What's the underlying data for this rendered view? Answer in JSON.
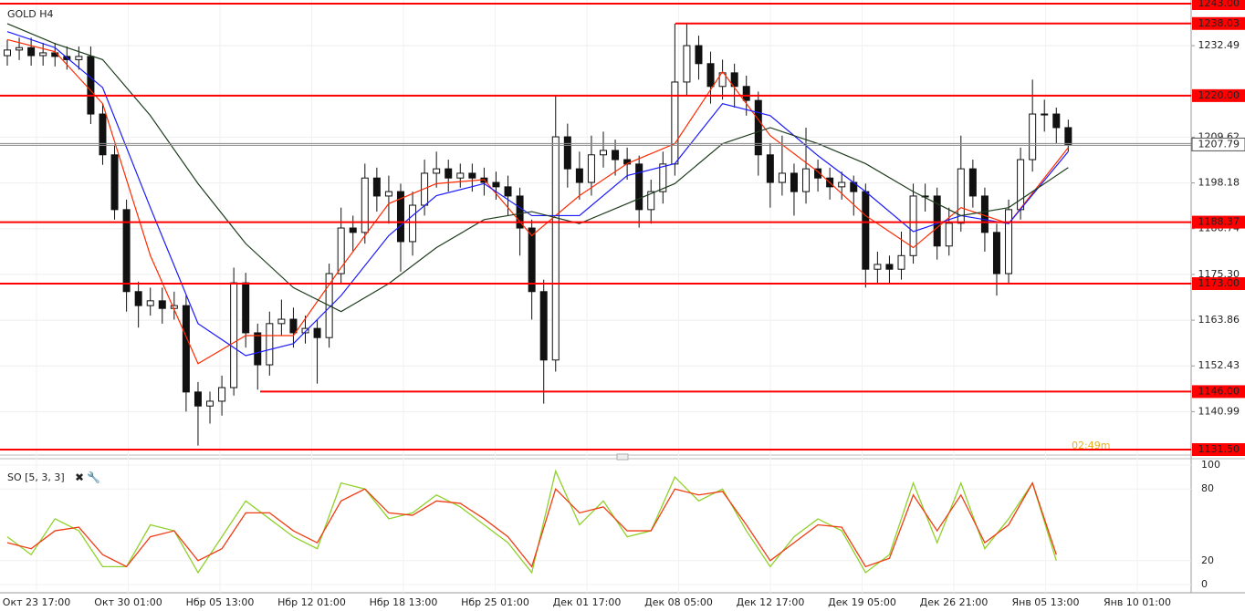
{
  "chart_data": [
    {
      "type": "candlestick",
      "title": "GOLD H4",
      "time_labels": [
        "Окт 23 17:00",
        "Окт 30 01:00",
        "Нбр 05 13:00",
        "Нбр 12 01:00",
        "Нбр 18 13:00",
        "Нбр 25 01:00",
        "Дек 01 17:00",
        "Дек 08 05:00",
        "Дек 12 17:00",
        "Дек 19 05:00",
        "Дек 26 21:00",
        "Янв 05 13:00",
        "Янв 10 01:00"
      ],
      "open": [
        1230,
        1231.4,
        1232,
        1230,
        1230.7,
        1229.8,
        1229,
        1229.8,
        1215.4,
        1205.2,
        1191.5,
        1171,
        1167.5,
        1168.7,
        1166.8,
        1167.5,
        1145.9,
        1142.4,
        1143.6,
        1147,
        1173.2,
        1160.7,
        1152.7,
        1163,
        1164.1,
        1160.7,
        1161.8,
        1159.5,
        1175.5,
        1186.9,
        1185.8,
        1199.4,
        1194.9,
        1196,
        1183.5,
        1192.6,
        1200.6,
        1201.7,
        1199.4,
        1200.6,
        1199.4,
        1198.3,
        1197.2,
        1194.9,
        1186.9,
        1171,
        1153.9,
        1209.7,
        1201.7,
        1198.3,
        1205.2,
        1206.3,
        1204,
        1202.9,
        1191.5,
        1196,
        1202.9,
        1223.4,
        1232.5,
        1228,
        1222.3,
        1225.7,
        1222.3,
        1218.8,
        1205.2,
        1198.3,
        1200.6,
        1196,
        1201.7,
        1199.4,
        1197.2,
        1198.3,
        1196,
        1176.6,
        1177.8,
        1176.6,
        1180,
        1194.9,
        1194.9,
        1182.4,
        1188.1,
        1201.7,
        1194.9,
        1185.8,
        1175.5,
        1191.5,
        1204,
        1215.4,
        1215.4,
        1212
      ],
      "high": [
        1233.9,
        1234.5,
        1234.5,
        1233.2,
        1233.2,
        1232.3,
        1232.3,
        1232.3,
        1217.9,
        1207.7,
        1194,
        1173.5,
        1172,
        1172,
        1171,
        1170,
        1148.4,
        1146,
        1150,
        1177,
        1175.7,
        1163,
        1166,
        1169,
        1167,
        1165,
        1164,
        1178,
        1192,
        1190,
        1203,
        1202,
        1200,
        1198,
        1196,
        1204,
        1206,
        1204,
        1203,
        1203,
        1202,
        1201,
        1200,
        1197,
        1189,
        1174,
        1220,
        1213,
        1206,
        1210,
        1211,
        1209,
        1207,
        1205,
        1199,
        1206,
        1238,
        1238,
        1235,
        1231,
        1229,
        1228,
        1225,
        1221,
        1208,
        1210,
        1203,
        1212,
        1204,
        1202,
        1201,
        1200,
        1198,
        1181,
        1180,
        1186,
        1198,
        1198,
        1197,
        1192,
        1210,
        1204,
        1197,
        1188,
        1194,
        1207,
        1224,
        1219,
        1217,
        1214
      ],
      "low": [
        1227.5,
        1228.9,
        1227.5,
        1227.5,
        1227.3,
        1226.5,
        1226.5,
        1212.9,
        1202.7,
        1189,
        1166,
        1162,
        1165,
        1163,
        1164,
        1141,
        1132.5,
        1138,
        1140,
        1145,
        1157,
        1146.5,
        1150,
        1160,
        1157,
        1158,
        1148,
        1157,
        1173,
        1181,
        1183,
        1191,
        1188,
        1176,
        1180,
        1190,
        1197,
        1196,
        1197,
        1196,
        1195,
        1194,
        1190,
        1180,
        1164,
        1143,
        1151,
        1197,
        1194,
        1195,
        1202,
        1200,
        1199,
        1187,
        1188,
        1193,
        1200,
        1220,
        1224,
        1218,
        1219,
        1217,
        1215,
        1200,
        1192,
        1195,
        1190,
        1193,
        1196,
        1194,
        1194,
        1190,
        1172,
        1173,
        1173,
        1174,
        1178,
        1191,
        1179,
        1180,
        1186,
        1192,
        1181,
        1170,
        1173,
        1189,
        1201,
        1211,
        1208,
        1206
      ],
      "close": [
        1231.4,
        1232,
        1230,
        1230.7,
        1229.8,
        1229,
        1229.8,
        1215.4,
        1205.2,
        1191.5,
        1171,
        1167.5,
        1168.7,
        1166.8,
        1167.5,
        1145.9,
        1142.4,
        1143.6,
        1147,
        1173.2,
        1160.7,
        1152.7,
        1163,
        1164.1,
        1160.7,
        1161.8,
        1159.5,
        1175.5,
        1186.9,
        1185.8,
        1199.4,
        1194.9,
        1196,
        1183.5,
        1192.6,
        1200.6,
        1201.7,
        1199.4,
        1200.6,
        1199.4,
        1198.3,
        1197.2,
        1194.9,
        1186.9,
        1171,
        1153.9,
        1209.7,
        1201.7,
        1198.3,
        1205.2,
        1206.3,
        1204,
        1202.9,
        1191.5,
        1196,
        1202.9,
        1223.4,
        1232.5,
        1228,
        1222.3,
        1225.7,
        1222.3,
        1218.8,
        1205.2,
        1198.3,
        1200.6,
        1196,
        1201.7,
        1199.4,
        1197.2,
        1198.3,
        1196,
        1176.6,
        1177.8,
        1176.6,
        1180,
        1194.9,
        1194.9,
        1182.4,
        1188.1,
        1201.7,
        1194.9,
        1185.8,
        1175.5,
        1191.5,
        1204,
        1215.4,
        1215.4,
        1212,
        1207.79
      ],
      "ylim": [
        1130.59,
        1243.91
      ],
      "yticks": [
        1232.49,
        1209.62,
        1198.18,
        1186.74,
        {
          "value": 1175.3,
          "label": "1175.30"
        },
        1163.86,
        1152.43,
        1140.99
      ],
      "levels": [
        {
          "value": 1243,
          "label": "1243.00"
        },
        1238.03,
        {
          "value": 1220,
          "label": "1220.00"
        },
        1188.37,
        {
          "value": 1173,
          "label": "1173.00"
        },
        {
          "value": 1146,
          "label": "1146.00"
        },
        {
          "value": 1131.5,
          "label": "1131.50"
        }
      ],
      "level_color": "#ff0000",
      "current_price": 1207.79,
      "countdown": "02:49m",
      "series": [
        {
          "color": "#ff2a00",
          "x": [
            0,
            4,
            8,
            12,
            16,
            20,
            24,
            28,
            32,
            36,
            40,
            44,
            48,
            52,
            56,
            60,
            64,
            68,
            72,
            76,
            80,
            84,
            89
          ],
          "values": [
            1234,
            1231,
            1218,
            1180,
            1153,
            1160,
            1160,
            1177,
            1193,
            1198,
            1199,
            1185,
            1195,
            1203,
            1208,
            1226,
            1210,
            1201,
            1190,
            1182,
            1192,
            1188,
            1207
          ]
        },
        {
          "color": "#1a1aff",
          "x": [
            0,
            4,
            8,
            12,
            16,
            20,
            24,
            28,
            32,
            36,
            40,
            44,
            48,
            52,
            56,
            60,
            64,
            68,
            72,
            76,
            80,
            84,
            89
          ],
          "values": [
            1236,
            1232,
            1222,
            1192,
            1163,
            1155,
            1158,
            1170,
            1185,
            1195,
            1198,
            1190,
            1190,
            1200,
            1203,
            1218,
            1215,
            1205,
            1196,
            1186,
            1190,
            1188,
            1206
          ]
        },
        {
          "color": "#1f3d1f",
          "x": [
            0,
            4,
            8,
            12,
            16,
            20,
            24,
            28,
            32,
            36,
            40,
            44,
            48,
            52,
            56,
            60,
            64,
            68,
            72,
            76,
            80,
            84,
            89
          ],
          "values": [
            1238,
            1233,
            1229,
            1215,
            1198,
            1183,
            1172,
            1166,
            1173,
            1182,
            1189,
            1191,
            1188,
            1193,
            1198,
            1208,
            1212,
            1208,
            1203,
            1196,
            1190,
            1192,
            1202
          ]
        }
      ]
    },
    {
      "type": "line",
      "title": "SO [5, 3, 3]",
      "ylim": [
        0,
        100
      ],
      "yticks": [
        100,
        80,
        20,
        0
      ],
      "series": [
        {
          "color": "#8fd12a",
          "x": [
            0,
            2,
            4,
            6,
            8,
            10,
            12,
            14,
            16,
            18,
            20,
            22,
            24,
            26,
            28,
            30,
            32,
            34,
            36,
            38,
            40,
            42,
            44,
            46,
            48,
            50,
            52,
            54,
            56,
            58,
            60,
            62,
            64,
            66,
            68,
            70,
            72,
            74,
            76,
            78,
            80,
            82,
            84,
            86,
            88
          ],
          "values": [
            40,
            25,
            55,
            45,
            15,
            15,
            50,
            45,
            10,
            40,
            70,
            55,
            40,
            30,
            85,
            80,
            55,
            60,
            75,
            65,
            50,
            35,
            10,
            95,
            50,
            70,
            40,
            45,
            90,
            70,
            80,
            45,
            15,
            40,
            55,
            45,
            10,
            25,
            85,
            35,
            85,
            30,
            55,
            85,
            20
          ]
        },
        {
          "color": "#f03c14",
          "x": [
            0,
            2,
            4,
            6,
            8,
            10,
            12,
            14,
            16,
            18,
            20,
            22,
            24,
            26,
            28,
            30,
            32,
            34,
            36,
            38,
            40,
            42,
            44,
            46,
            48,
            50,
            52,
            54,
            56,
            58,
            60,
            62,
            64,
            66,
            68,
            70,
            72,
            74,
            76,
            78,
            80,
            82,
            84,
            86,
            88
          ],
          "values": [
            35,
            30,
            45,
            48,
            25,
            15,
            40,
            45,
            20,
            30,
            60,
            60,
            45,
            35,
            70,
            80,
            60,
            58,
            70,
            68,
            55,
            40,
            15,
            80,
            60,
            65,
            45,
            45,
            80,
            75,
            78,
            50,
            20,
            35,
            50,
            48,
            15,
            22,
            75,
            45,
            75,
            35,
            50,
            85,
            25
          ]
        }
      ]
    }
  ]
}
